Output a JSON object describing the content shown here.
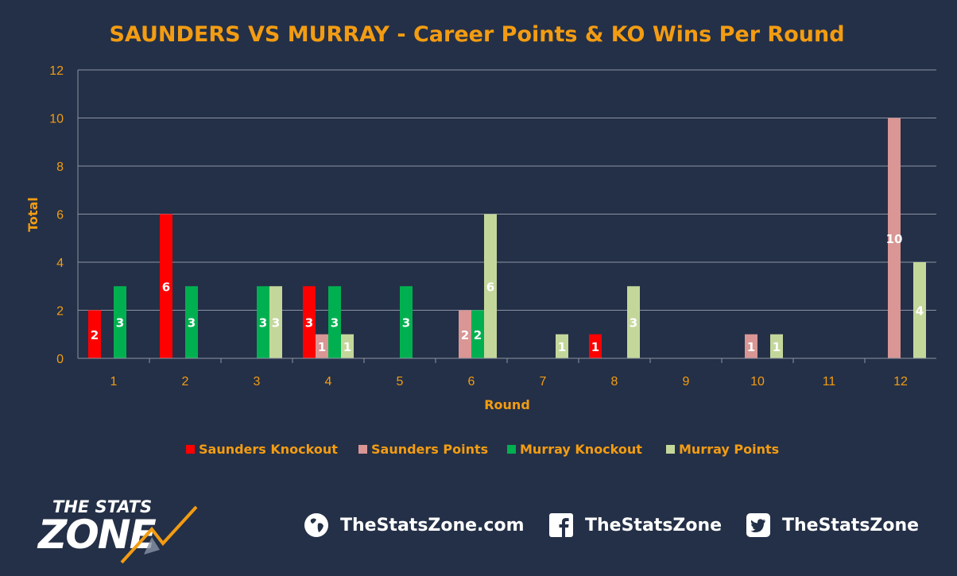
{
  "chart_data": {
    "type": "bar",
    "title": "SAUNDERS VS MURRAY - Career Points & KO Wins Per Round",
    "xlabel": "Round",
    "ylabel": "Total",
    "ylim": [
      0,
      12
    ],
    "yticks": [
      0,
      2,
      4,
      6,
      8,
      10,
      12
    ],
    "grid": true,
    "legend_position": "bottom",
    "categories": [
      "1",
      "2",
      "3",
      "4",
      "5",
      "6",
      "7",
      "8",
      "9",
      "10",
      "11",
      "12"
    ],
    "series": [
      {
        "name": "Saunders Knockout",
        "color": "#FF0000",
        "values": [
          2,
          6,
          null,
          3,
          null,
          null,
          null,
          1,
          null,
          null,
          null,
          null
        ]
      },
      {
        "name": "Saunders Points",
        "color": "#D99694",
        "values": [
          null,
          null,
          null,
          1,
          null,
          2,
          null,
          null,
          null,
          1,
          null,
          10
        ]
      },
      {
        "name": "Murray Knockout",
        "color": "#00B050",
        "values": [
          3,
          3,
          3,
          3,
          3,
          2,
          null,
          null,
          null,
          null,
          null,
          null
        ]
      },
      {
        "name": "Murray Points",
        "color": "#C4D79B",
        "values": [
          null,
          null,
          3,
          1,
          null,
          6,
          1,
          3,
          null,
          1,
          null,
          4
        ]
      }
    ]
  },
  "footer": {
    "logo": {
      "line1": "THE STATS",
      "line2": "ZONE"
    },
    "website": {
      "icon": "globe-icon",
      "text": "TheStatsZone.com"
    },
    "facebook": {
      "icon": "facebook-icon",
      "text": "TheStatsZone"
    },
    "twitter": {
      "icon": "twitter-icon",
      "text": "TheStatsZone"
    }
  }
}
